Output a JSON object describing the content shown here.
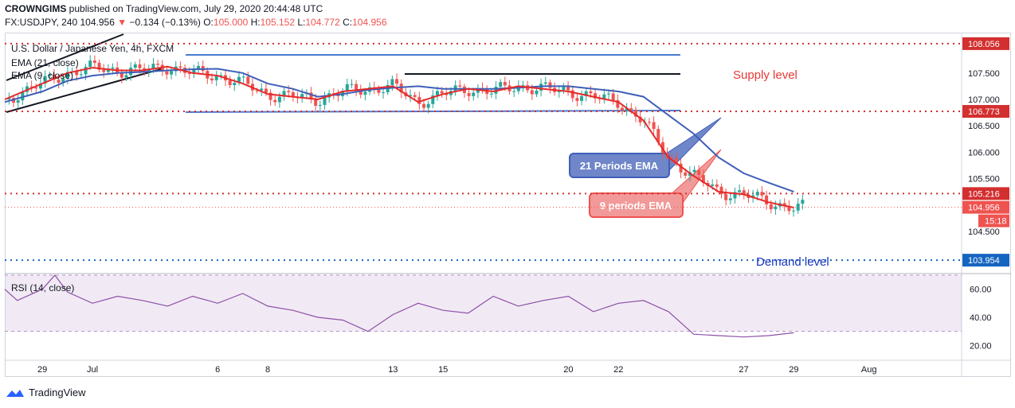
{
  "header": {
    "author": "CROWNGIMS",
    "published": "published on TradingView.com, July 29, 2020 20:44:48 UTC",
    "symbol": "FX:USDJPY, 240",
    "last": "104.956",
    "change": "−0.134 (−0.13%)",
    "open_label": "O:",
    "open": "105.000",
    "high_label": "H:",
    "high": "105.152",
    "low_label": "L:",
    "low": "104.772",
    "close_label": "C:",
    "close": "104.956"
  },
  "legend": {
    "title": "U.S. Dollar / Japanese Yen, 4h, FXCM",
    "ema21": "EMA (21, close)",
    "ema9": "EMA (9, close)",
    "rsi": "RSI (14, close)"
  },
  "annotations": {
    "supply": "Supply level",
    "demand": "Demand level",
    "ema21_callout": "21 Periods EMA",
    "ema9_callout": "9 periods EMA"
  },
  "price_tags": {
    "top": "108.056",
    "supply": "106.773",
    "mid": "105.216",
    "last": "104.956",
    "timer": "15:18",
    "demand": "103.954"
  },
  "footer": {
    "brand": "TradingView"
  },
  "colors": {
    "up": "#26a69a",
    "down": "#ef5350",
    "ema9": "#e52a2a",
    "ema21": "#3f5fb8",
    "level": "#d32f2f",
    "demand": "#1565c0",
    "channel": "#4a7bd0",
    "rsi": "#8e4fa8"
  },
  "chart_data": {
    "type": "line",
    "title": "U.S. Dollar / Japanese Yen, 4h, FXCM",
    "y_ticks": [
      104.5,
      105.0,
      105.5,
      106.0,
      106.5,
      107.0,
      107.5
    ],
    "y_tick_labels": [
      "104.500",
      "105.000",
      "105.500",
      "106.000",
      "106.500",
      "107.000",
      "107.500"
    ],
    "ylim": [
      103.7,
      108.25
    ],
    "x_tick_labels": [
      "29",
      "Jul",
      "6",
      "8",
      "13",
      "15",
      "20",
      "22",
      "27",
      "29",
      "Aug"
    ],
    "x_tick_days": [
      0,
      2,
      7,
      9,
      14,
      16,
      21,
      23,
      28,
      30,
      33
    ],
    "xlim_days": [
      -1.5,
      36.7
    ],
    "levels": [
      108.056,
      106.773,
      105.216,
      103.954
    ],
    "series": [
      {
        "name": "EMA (21, close)",
        "x_days": [
          -1.5,
          0,
          1,
          2,
          3,
          4,
          5,
          6,
          7,
          8,
          9,
          10,
          11,
          12,
          13,
          14,
          15,
          16,
          17,
          18,
          19,
          20,
          21,
          22,
          23,
          24,
          25,
          26,
          27,
          28,
          29,
          30
        ],
        "values": [
          106.95,
          107.15,
          107.35,
          107.45,
          107.5,
          107.52,
          107.55,
          107.57,
          107.58,
          107.5,
          107.3,
          107.2,
          107.05,
          107.1,
          107.18,
          107.22,
          107.25,
          107.2,
          107.2,
          107.2,
          107.22,
          107.25,
          107.25,
          107.2,
          107.15,
          107.05,
          106.7,
          106.35,
          105.9,
          105.6,
          105.42,
          105.25
        ]
      },
      {
        "name": "EMA (9, close)",
        "x_days": [
          -1.5,
          0,
          1,
          2,
          3,
          4,
          5,
          6,
          7,
          8,
          9,
          10,
          11,
          12,
          13,
          14,
          15,
          16,
          17,
          18,
          19,
          20,
          21,
          22,
          23,
          24,
          25,
          26,
          27,
          28,
          29,
          30
        ],
        "values": [
          107.0,
          107.3,
          107.5,
          107.6,
          107.55,
          107.55,
          107.62,
          107.5,
          107.45,
          107.3,
          107.1,
          107.05,
          107.0,
          107.15,
          107.2,
          107.25,
          106.95,
          107.1,
          107.2,
          107.15,
          107.25,
          107.2,
          107.15,
          107.05,
          106.95,
          106.6,
          105.9,
          105.55,
          105.25,
          105.2,
          105.05,
          104.95
        ]
      }
    ],
    "rsi": {
      "name": "RSI (14, close)",
      "y_ticks": [
        20,
        40,
        60
      ],
      "y_tick_labels": [
        "20.00",
        "40.00",
        "60.00"
      ],
      "ylim": [
        10,
        70
      ],
      "bands": [
        30,
        70
      ],
      "x_days": [
        -1.5,
        -1,
        0,
        0.5,
        1,
        2,
        3,
        4,
        5,
        6,
        7,
        8,
        9,
        10,
        11,
        12,
        13,
        14,
        15,
        16,
        17,
        18,
        19,
        20,
        21,
        22,
        23,
        24,
        25,
        26,
        27,
        28,
        29,
        30
      ],
      "values": [
        60,
        52,
        60,
        70,
        58,
        50,
        55,
        52,
        48,
        55,
        50,
        57,
        48,
        45,
        40,
        38,
        30,
        42,
        50,
        45,
        43,
        55,
        48,
        52,
        55,
        44,
        50,
        52,
        44,
        28,
        27,
        26,
        27,
        29
      ]
    }
  }
}
